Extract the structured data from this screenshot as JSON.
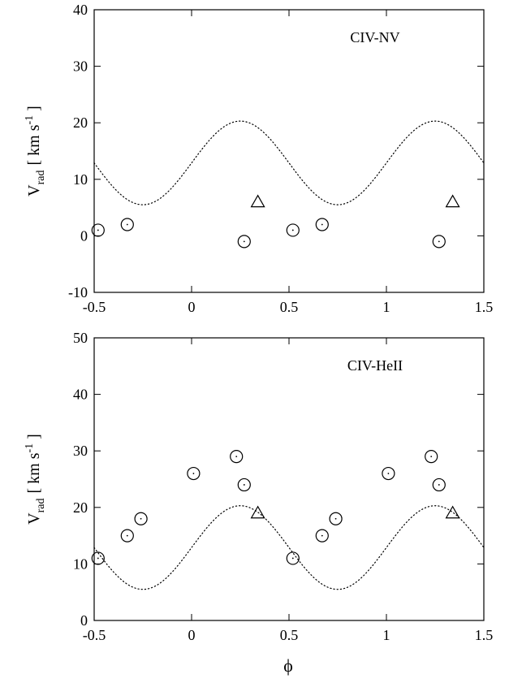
{
  "figure": {
    "xlabel": "ϕ"
  },
  "chart_data": [
    {
      "type": "scatter",
      "annotation": "CIV-NV",
      "ylabel": {
        "symbol": "V",
        "subscript": "rad",
        "unit_open": "[ km s",
        "unit_exp": "-1",
        "unit_close": " ]"
      },
      "xlim": [
        -0.5,
        1.5
      ],
      "ylim": [
        -10,
        40
      ],
      "x_ticks": [
        "-0.5",
        "0",
        "0.5",
        "1",
        "1.5"
      ],
      "y_ticks": [
        "-10",
        "0",
        "10",
        "20",
        "30",
        "40"
      ],
      "grid": false,
      "curve": {
        "style": "dotted",
        "function": "sinusoid",
        "mean": 12.9,
        "amplitude": 7.4,
        "peak_phase": 0.25
      },
      "series": [
        {
          "marker": "circle",
          "points": [
            [
              -0.48,
              1
            ],
            [
              -0.33,
              2
            ],
            [
              0.27,
              -1
            ],
            [
              0.52,
              1
            ],
            [
              0.67,
              2
            ],
            [
              1.27,
              -1
            ]
          ]
        },
        {
          "marker": "triangle",
          "points": [
            [
              0.34,
              6
            ],
            [
              1.34,
              6
            ]
          ]
        }
      ]
    },
    {
      "type": "scatter",
      "annotation": "CIV-HeII",
      "ylabel": {
        "symbol": "V",
        "subscript": "rad",
        "unit_open": "[ km s",
        "unit_exp": "-1",
        "unit_close": " ]"
      },
      "xlim": [
        -0.5,
        1.5
      ],
      "ylim": [
        0,
        50
      ],
      "x_ticks": [
        "-0.5",
        "0",
        "0.5",
        "1",
        "1.5"
      ],
      "y_ticks": [
        "0",
        "10",
        "20",
        "30",
        "40",
        "50"
      ],
      "grid": false,
      "curve": {
        "style": "dotted",
        "function": "sinusoid",
        "mean": 12.9,
        "amplitude": 7.4,
        "peak_phase": 0.25
      },
      "series": [
        {
          "marker": "circle",
          "points": [
            [
              -0.48,
              11
            ],
            [
              -0.33,
              15
            ],
            [
              -0.26,
              18
            ],
            [
              0.01,
              26
            ],
            [
              0.23,
              29
            ],
            [
              0.27,
              24
            ],
            [
              0.52,
              11
            ],
            [
              0.67,
              15
            ],
            [
              0.74,
              18
            ],
            [
              1.01,
              26
            ],
            [
              1.23,
              29
            ],
            [
              1.27,
              24
            ]
          ]
        },
        {
          "marker": "triangle",
          "points": [
            [
              0.34,
              19
            ],
            [
              1.34,
              19
            ]
          ]
        }
      ]
    }
  ]
}
